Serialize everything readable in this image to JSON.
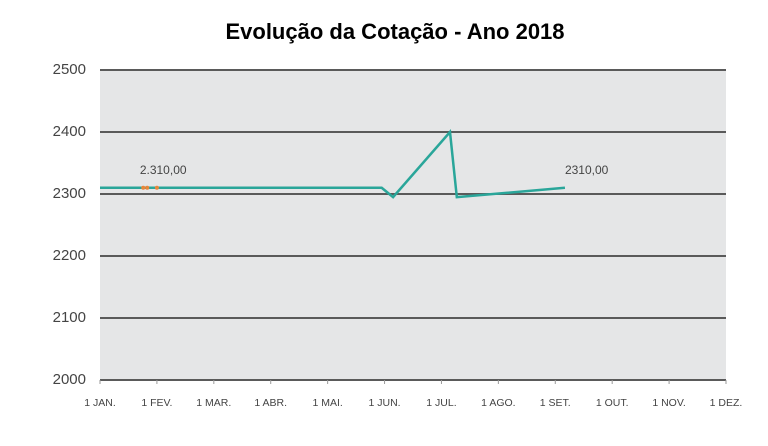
{
  "chart_data": {
    "type": "line",
    "title": "Evolução da Cotação - Ano 2018",
    "x_scale": "months",
    "xlim": [
      0,
      11
    ],
    "xticks": [
      {
        "value": 0,
        "label": "1 JAN."
      },
      {
        "value": 1,
        "label": "1 FEV."
      },
      {
        "value": 2,
        "label": "1 MAR."
      },
      {
        "value": 3,
        "label": "1 ABR."
      },
      {
        "value": 4,
        "label": "1 MAI."
      },
      {
        "value": 5,
        "label": "1 JUN."
      },
      {
        "value": 6,
        "label": "1 JUL."
      },
      {
        "value": 7,
        "label": "1 AGO."
      },
      {
        "value": 8,
        "label": "1 SET."
      },
      {
        "value": 9,
        "label": "1 OUT."
      },
      {
        "value": 10,
        "label": "1 NOV."
      },
      {
        "value": 11,
        "label": "1 DEZ."
      }
    ],
    "ylim": [
      2000,
      2500
    ],
    "yticks": [
      2000,
      2100,
      2200,
      2300,
      2400,
      2500
    ],
    "grid": true,
    "series": [
      {
        "color": "#2aa69a",
        "x": [
          0,
          4.95,
          5.15,
          6.15,
          6.27,
          8.17
        ],
        "values": [
          2310,
          2310,
          2295,
          2400,
          2295,
          2310
        ]
      },
      {
        "color": "#e8863a",
        "x": [
          0.76,
          0.83,
          1.0
        ],
        "values": [
          2310,
          2310,
          2310
        ],
        "markers": true
      }
    ],
    "annotations": [
      {
        "text": "2.310,00",
        "x": 0.7,
        "y": 2310
      },
      {
        "text": "2310,00",
        "x": 8.17,
        "y": 2310
      }
    ]
  }
}
